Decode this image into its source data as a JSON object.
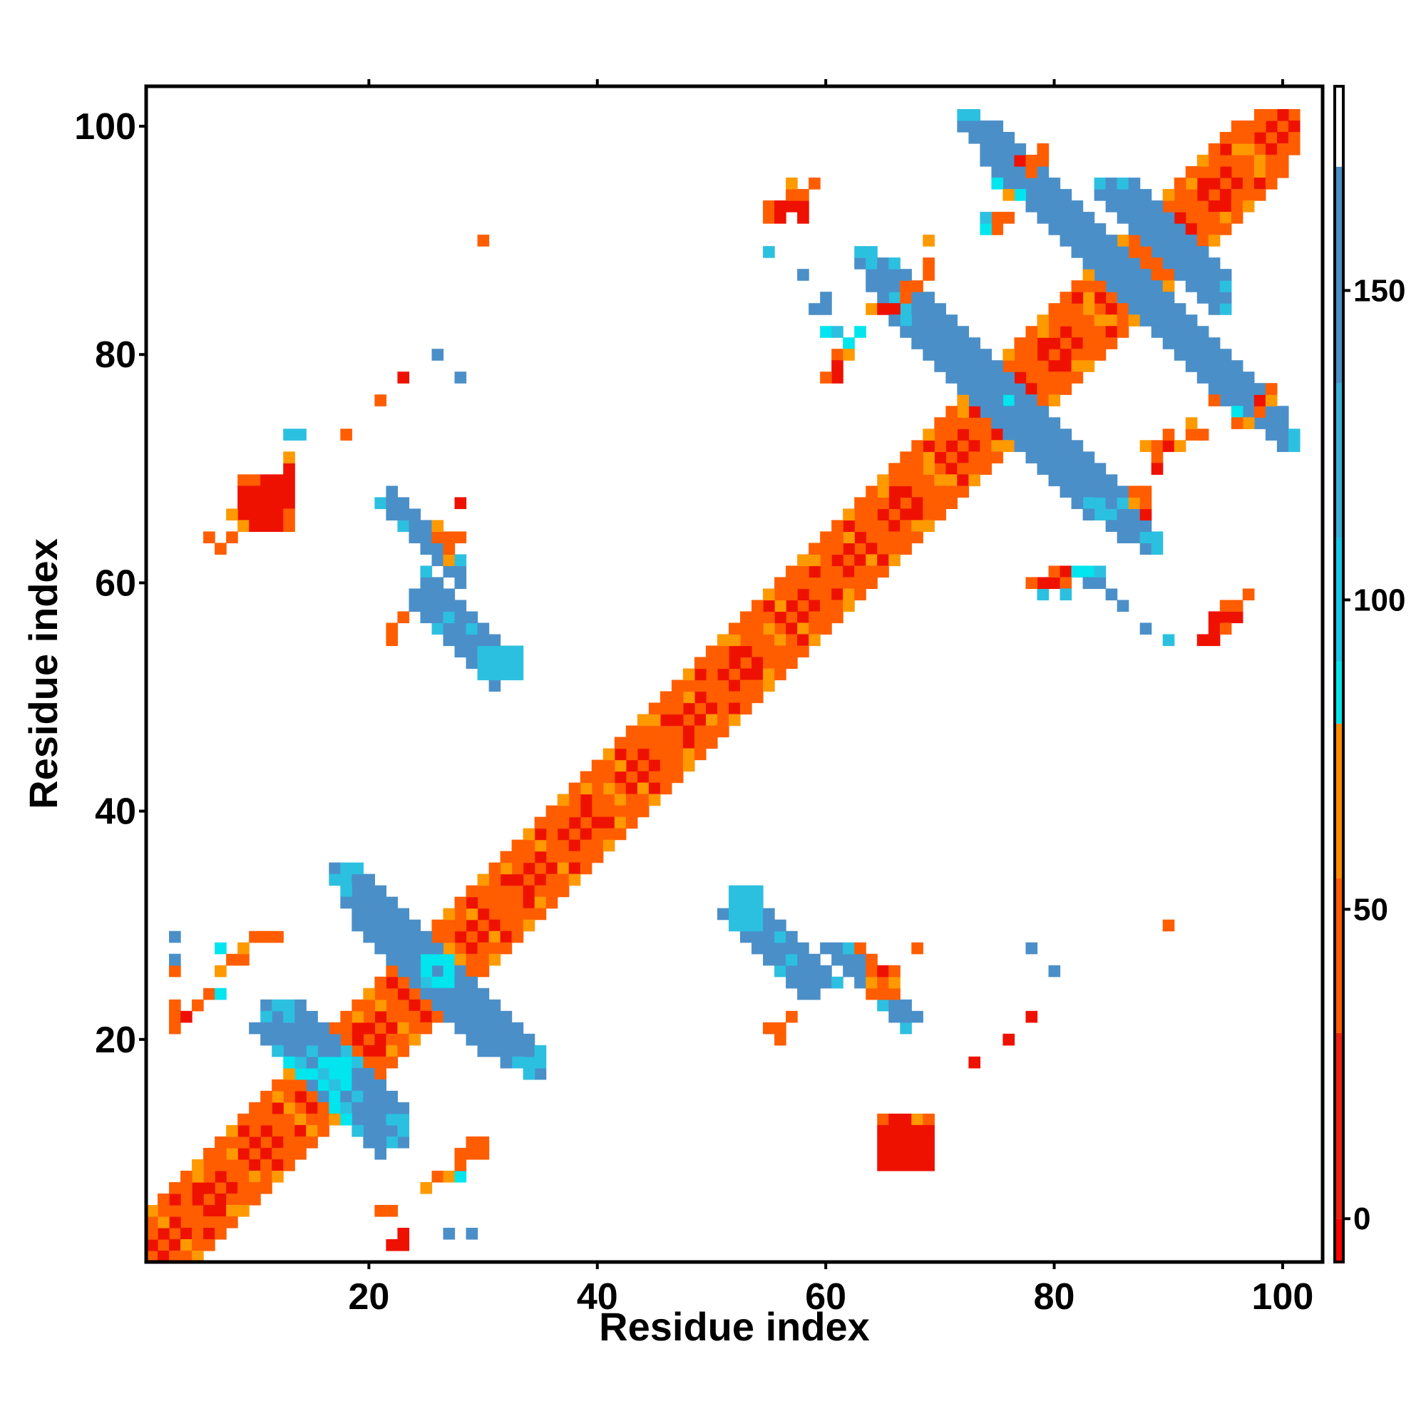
{
  "chart_data": {
    "type": "heatmap",
    "title": "",
    "xlabel": "Residue index",
    "ylabel": "Residue index",
    "xlim": [
      1,
      103
    ],
    "ylim": [
      1,
      103
    ],
    "xticks": [
      20,
      40,
      60,
      80,
      100
    ],
    "xtick_labels": [
      "20",
      "40",
      "60",
      "80",
      "100"
    ],
    "yticks": [
      20,
      40,
      60,
      80,
      100
    ],
    "ytick_labels": [
      "20",
      "40",
      "60",
      "80",
      "100"
    ],
    "grid": false,
    "legend": "none",
    "colorbar": {
      "position": "right",
      "range": [
        -7,
        183
      ],
      "ticks": [
        0,
        50,
        100,
        150
      ],
      "tick_labels": [
        "0",
        "50",
        "100",
        "150"
      ],
      "bands": [
        {
          "from": -7,
          "to": 0,
          "color": "#ff0000"
        },
        {
          "from": 0,
          "to": 30,
          "color": "#f02010"
        },
        {
          "from": 30,
          "to": 55,
          "color": "#ff5a00"
        },
        {
          "from": 55,
          "to": 80,
          "color": "#ff8c00"
        },
        {
          "from": 80,
          "to": 90,
          "color": "#00e5ee"
        },
        {
          "from": 90,
          "to": 110,
          "color": "#17c8e8"
        },
        {
          "from": 110,
          "to": 135,
          "color": "#39b0d8"
        },
        {
          "from": 135,
          "to": 170,
          "color": "#4a8fc8"
        },
        {
          "from": 170,
          "to": 183,
          "color": "#ffffff"
        }
      ]
    },
    "palette": {
      "r": "#ee1100",
      "o": "#ff5d00",
      "y": "#ff9900",
      "c": "#00e5ee",
      "l": "#2cc0e0",
      "b": "#4b8fc8"
    },
    "approx_value_by_class": {
      "r": 10,
      "o": 45,
      "y": 65,
      "c": 88,
      "l": 120,
      "b": 150
    },
    "clusters": [
      {
        "kind": "diag",
        "from": 1,
        "to": 101,
        "codes": "o"
      },
      {
        "kind": "offdiag",
        "k": 1,
        "from": 2,
        "to": 101,
        "codes": "rrrorrrorrroyrrroorrrorrroyrrroorrrorrroyrrroorrrorrroyrrroorrrorrroyrrroorrrorrroyrrroorrrorrroyrrro"
      },
      {
        "kind": "offdiag",
        "k": 2,
        "from": 3,
        "to": 101,
        "codes": "oyoorooyooorooyoooroyoooroooyoorooyooorooyoooroyoooroooyoorooyooorooyoooroyoooroooyoorooyooorooyooo"
      },
      {
        "kind": "offdiag",
        "k": 3,
        "from": 4,
        "to": 101,
        "codes": "ooroyooorooyooroooyoorooyooorooyooroooyoorooyooorooyooroooyoorooyooorooyooroooyoorooyooorooyooroooy"
      },
      {
        "kind": "offdiag",
        "k": 4,
        "from": 5,
        "to": 101,
        "codes": "yoooyooyooooyooyoooyooyoooyooyoooyooyoooyooyoooyooyoooyooyoooyooyoooyooyoooyooyoooyooyoooyooyooo"
      },
      {
        "kind": "anti",
        "sum": 34,
        "from": 11,
        "to": 23,
        "codes": "lbbbblcclbbbb"
      },
      {
        "kind": "anti",
        "sum": 33,
        "from": 11,
        "to": 22,
        "codes": "bbbbbllbbbbl"
      },
      {
        "kind": "anti",
        "sum": 35,
        "from": 12,
        "to": 23,
        "codes": "bblbbccbbbll"
      },
      {
        "kind": "anti",
        "sum": 32,
        "from": 12,
        "to": 21,
        "codes": "lbbbcclbbb"
      },
      {
        "kind": "anti",
        "sum": 36,
        "from": 13,
        "to": 23,
        "codes": "bbblccbbbbl"
      },
      {
        "kind": "anti",
        "sum": 31,
        "from": 14,
        "to": 21,
        "codes": "bbbcclbb"
      },
      {
        "kind": "anti",
        "sum": 37,
        "from": 14,
        "to": 23,
        "codes": "blbbclbbbb"
      },
      {
        "kind": "anti",
        "sum": 52,
        "from": 17,
        "to": 35,
        "codes": "bbbbblbbbbcbbbbbblb"
      },
      {
        "kind": "anti",
        "sum": 51,
        "from": 17,
        "to": 34,
        "codes": "lbbbbbblccbbbbbbll"
      },
      {
        "kind": "anti",
        "sum": 53,
        "from": 18,
        "to": 35,
        "codes": "bbbbbblbbcbbbbbbbl"
      },
      {
        "kind": "anti",
        "sum": 50,
        "from": 18,
        "to": 32,
        "codes": "bbbbbbclbbbbbbb"
      },
      {
        "kind": "anti",
        "sum": 54,
        "from": 19,
        "to": 35,
        "codes": "bbbbbbbbcbbbbbbbl"
      },
      {
        "kind": "anti",
        "sum": 49,
        "from": 19,
        "to": 30,
        "codes": "bbbbblbbbbbb"
      },
      {
        "kind": "anti",
        "sum": 82,
        "from": 24,
        "to": 31,
        "codes": "bblbbbbb"
      },
      {
        "kind": "anti",
        "sum": 83,
        "from": 24,
        "to": 31,
        "codes": "bbbbbbbl"
      },
      {
        "kind": "anti",
        "sum": 84,
        "from": 25,
        "to": 32,
        "codes": "bbbbbbll"
      },
      {
        "kind": "anti",
        "sum": 85,
        "from": 25,
        "to": 32,
        "codes": "lbbbbbbl"
      },
      {
        "kind": "anti",
        "sum": 86,
        "from": 26,
        "to": 32,
        "codes": "bbbbbbl"
      },
      {
        "kind": "anti",
        "sum": 82,
        "from": 51,
        "to": 58,
        "codes": "bbbbblbb"
      },
      {
        "kind": "anti",
        "sum": 83,
        "from": 52,
        "to": 59,
        "codes": "lbbbbbbb"
      },
      {
        "kind": "anti",
        "sum": 84,
        "from": 52,
        "to": 59,
        "codes": "bbbbblbb"
      },
      {
        "kind": "anti",
        "sum": 85,
        "from": 53,
        "to": 60,
        "codes": "bbblbbbb"
      },
      {
        "kind": "anti",
        "sum": 86,
        "from": 54,
        "to": 61,
        "codes": "bbbbbbbl"
      },
      {
        "kind": "anti",
        "sum": 88,
        "from": 60,
        "to": 67,
        "codes": "bbbbblbl"
      },
      {
        "kind": "anti",
        "sum": 89,
        "from": 61,
        "to": 67,
        "codes": "bbbbbbb"
      },
      {
        "kind": "anti",
        "sum": 90,
        "from": 62,
        "to": 68,
        "codes": "lbbbbbb"
      },
      {
        "kind": "anti",
        "sum": 151,
        "from": 63,
        "to": 88,
        "codes": "bbblbbbbbcbbbbbbbbbbbllbbb"
      },
      {
        "kind": "anti",
        "sum": 152,
        "from": 63,
        "to": 89,
        "codes": "bbbbbbbbbbbbbcbbbbbbbbbbbll"
      },
      {
        "kind": "anti",
        "sum": 150,
        "from": 64,
        "to": 86,
        "codes": "bbbbbbbbcbbbbbbbbbbllbb"
      },
      {
        "kind": "anti",
        "sum": 153,
        "from": 64,
        "to": 89,
        "codes": "bbbbbbbbbbblcbbbbbbbbblbbl"
      },
      {
        "kind": "anti",
        "sum": 149,
        "from": 66,
        "to": 83,
        "codes": "bbbbbblbbbbbbbbbbb"
      },
      {
        "kind": "anti",
        "sum": 154,
        "from": 66,
        "to": 88,
        "codes": "bbbbbbbbbcbbbbbbbbbbbbl"
      },
      {
        "kind": "anti",
        "sum": 172,
        "from": 72,
        "to": 100,
        "codes": "bbbbbbbbbbbbbbbbbbbbbbbbbbbbb"
      },
      {
        "kind": "anti",
        "sum": 173,
        "from": 72,
        "to": 101,
        "codes": "bbbbbbbbbbbbbbbbbbbbbbbbbbbbbl"
      },
      {
        "kind": "anti",
        "sum": 174,
        "from": 73,
        "to": 101,
        "codes": "bbbbbbbbbbbbbbbbbbbbbbbbbbbbl"
      },
      {
        "kind": "anti",
        "sum": 171,
        "from": 74,
        "to": 97,
        "codes": "bbbbbbbbbbbbbbbbbbbbbbbb"
      },
      {
        "kind": "anti",
        "sum": 175,
        "from": 75,
        "to": 100,
        "codes": "bbbbbbbbbbbbbbbbbbbbbbbbbb"
      },
      {
        "kind": "anti",
        "sum": 178,
        "from": 84,
        "to": 94,
        "codes": "bbbbbbbbbbb"
      },
      {
        "kind": "anti",
        "sum": 179,
        "from": 84,
        "to": 95,
        "codes": "bbbbbbbbbbbl"
      },
      {
        "kind": "anti",
        "sum": 180,
        "from": 85,
        "to": 95,
        "codes": "bbbbbbbbbbb"
      },
      {
        "kind": "anti",
        "sum": 181,
        "from": 86,
        "to": 95,
        "codes": "bbbbbbbbbl"
      },
      {
        "kind": "anti",
        "sum": 182,
        "from": 87,
        "to": 95,
        "codes": "bbbbbbbbb"
      },
      {
        "kind": "box",
        "x0": 9,
        "x1": 13,
        "y0": 65,
        "y1": 69,
        "codes": "oorrr rrrrr rrrrr rrrro yrrro"
      },
      {
        "kind": "box",
        "x0": 65,
        "x1": 69,
        "y0": 9,
        "y1": 13,
        "codes": "orryo rrrrr rrrrr rrrrr rrrrr"
      },
      {
        "kind": "box",
        "x0": 30,
        "x1": 33,
        "y0": 52,
        "y1": 54,
        "codes": "llll llll llll"
      },
      {
        "kind": "box",
        "x0": 52,
        "x1": 54,
        "y0": 30,
        "y1": 33,
        "codes": "lll lll lll lll"
      },
      {
        "kind": "points",
        "codes": "r,22,2 r,23,2 o,3,21 o,3,22 r,4,22 o,3,23 o,5,23 o,6,24 o,3,26 b,3,27 b,3,29 c,7,24 y,7,26 c,7,28 o,8,27 o,9,27 y,9,28 o,10,29 o,11,29 o,12,29 o,6,64 o,7,63 o,8,64 y,8,66 r,13,70 y,13,71 l,13,73 l,14,73 o,18,73 o,21,76 r,23,78 b,26,80 b,28,78 o,22,55 o,22,56 o,23,57 r,28,67 o,30,90 o,26,64 y,26,65 o,27,64 o,27,63 y,27,62 o,28,64 o,21,5 o,22,5 r,23,3 b,27,3 b,29,3 y,25,7 o,26,8 y,27,8 c,28,8 o,28,9 o,28,10 o,29,10 o,29,11 o,30,10 o,30,11 o,55,21 o,56,21 o,57,22 o,56,20 o,64,24 y,64,25 o,65,24 o,65,25 r,65,26 o,64,26 y,66,25 o,66,24 o,66,26 o,64,27 o,63,28 o,68,28 r,73,18 r,76,20 r,78,22 b,78,28 b,80,26 o,90,30 l,55,89 b,58,87 b,59,84 b,60,85 b,60,84 c,62,81 c,63,82 c,60,82 l,61,82 o,61,80 r,61,79 r,61,78 o,60,78 y,62,80 y,64,84 r,65,84 r,66,84 o,67,85 o,67,86 o,68,86 o,69,87 o,69,88 y,69,90 o,55,92 o,55,93 r,56,92 r,56,93 r,57,93 r,58,93 o,57,94 o,58,94 r,58,92 o,59,95 y,57,95 o,75,91 o,75,92 o,76,92 c,74,91 l,74,92 o,78,96 r,77,97 o,78,97 o,79,97 o,79,98 y,76,94 c,75,95 c,77,94 l,79,59 r,79,60 o,78,60 r,80,60 o,80,61 r,81,61 o,81,60 l,81,59 c,82,61 c,83,61 b,83,60 b,84,60 l,84,61 b,85,59 b,86,58 b,88,56 l,90,55 r,93,55 r,94,55 r,94,56 r,95,57 r,96,57 o,96,58 r,94,57 o,95,58 o,95,56 o,97,59 y,88,72 o,89,72 o,89,71 r,90,72 o,90,73 r,89,70 y,91,72 o,87,68 y,87,67 o,88,67 o,88,68 r,88,66 c,96,75 o,96,74 y,97,74 r,98,76 o,98,75 y,99,76 o,99,77 o,94,76 o,93,73 o,92,73 y,92,74"
      }
    ]
  }
}
